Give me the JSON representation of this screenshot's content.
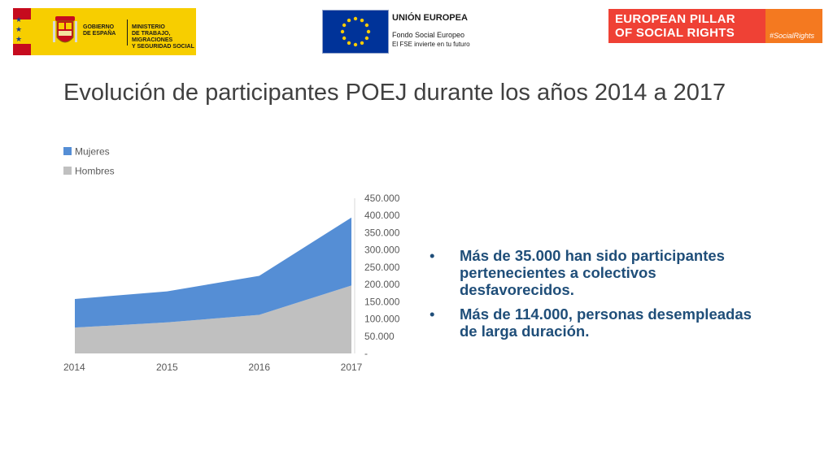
{
  "logos": {
    "gobierno": {
      "line1": "GOBIERNO\nDE ESPAÑA",
      "line2": "MINISTERIO\nDE TRABAJO, MIGRACIONES\nY SEGURIDAD SOCIAL"
    },
    "ue": {
      "title": "UNIÓN EUROPEA",
      "sub1": "Fondo Social Europeo",
      "sub2": "El FSE invierte en tu futuro"
    },
    "pillar": {
      "text": "EUROPEAN PILLAR\nOF SOCIAL RIGHTS",
      "tag": "#SocialRights"
    }
  },
  "title": "Evolución de participantes POEJ durante los años 2014 a 2017",
  "chart_data": {
    "type": "area",
    "stacked": true,
    "categories": [
      "2014",
      "2015",
      "2016",
      "2017"
    ],
    "series": [
      {
        "name": "Hombres",
        "values": [
          75000,
          90000,
          112000,
          197000
        ],
        "color": "#c0c0c0"
      },
      {
        "name": "Mujeres",
        "values": [
          83000,
          90000,
          113000,
          197000
        ],
        "color": "#558ed5"
      }
    ],
    "ylim": [
      0,
      450000
    ],
    "yticks": [
      "-",
      "50.000",
      "100.000",
      "150.000",
      "200.000",
      "250.000",
      "300.000",
      "350.000",
      "400.000",
      "450.000"
    ],
    "y_axis_position": "right",
    "legend_position": "top-left",
    "grid": false,
    "title": "",
    "xlabel": "",
    "ylabel": ""
  },
  "bullets": [
    "Más de 35.000 han sido participantes pertenecientes a colectivos desfavorecidos.",
    "Más de 114.000, personas desempleadas de larga duración."
  ],
  "bullet_glyph": "•"
}
